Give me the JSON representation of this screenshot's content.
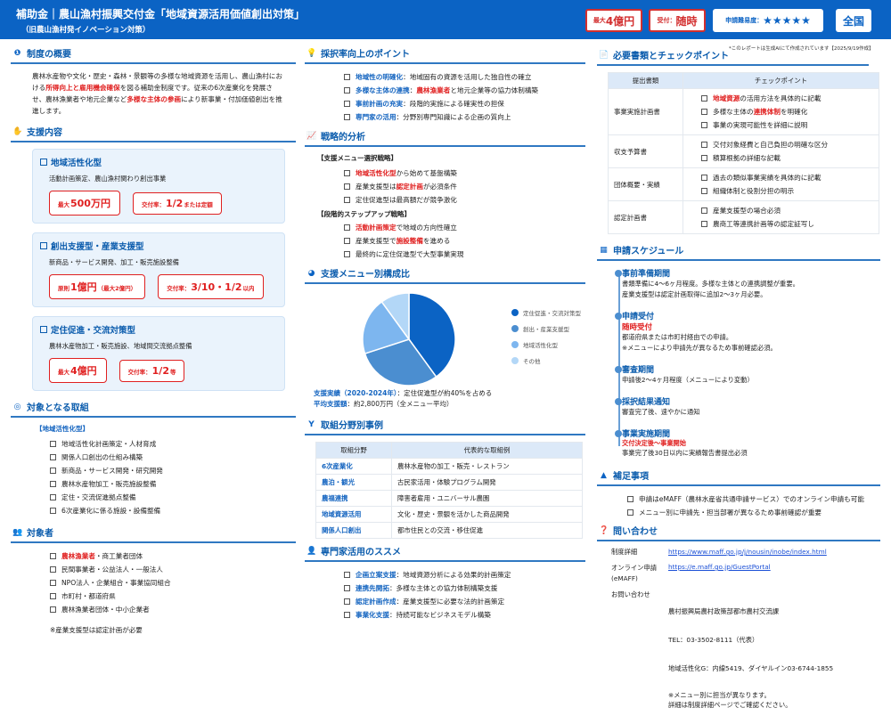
{
  "header": {
    "title": "補助金｜農山漁村振興交付金「地域資源活用価値創出対策」",
    "subtitle": "（旧農山漁村発イノベーション対策）",
    "badge_max_prefix": "最大",
    "badge_max_value": "4億円",
    "badge_accept_prefix": "受付：",
    "badge_accept_value": "随時",
    "difficulty_label": "申請難易度：",
    "difficulty_stars": "★★★★★",
    "region": "全国"
  },
  "note": "*このレポートは生成AIにて作成されています【2025/9/19作成】",
  "overview": {
    "title": "制度の概要",
    "text": [
      {
        "t": "農林水産物や文化・歴史・森林・景観等の多様な地域資源を活用し、農山漁村における"
      },
      {
        "t": "所得向上と雇用機会確保",
        "c": "red"
      },
      {
        "t": "を図る補助金制度です。従来の6次産業化を発展させ、農林漁業者や地元企業など"
      },
      {
        "t": "多様な主体の参画",
        "c": "red"
      },
      {
        "t": "により新事業・付加価値創出を推進します。"
      }
    ]
  },
  "support": {
    "title": "支援内容",
    "cards": [
      {
        "title": "地域活性化型",
        "desc": "活動計画策定、農山漁村関わり創出事業",
        "pills": [
          {
            "pre": "最大",
            "big": "500万円",
            "post": ""
          },
          {
            "pre": "交付率：",
            "big": "1/2",
            "post": "または定額"
          }
        ]
      },
      {
        "title": "創出支援型・産業支援型",
        "desc": "新商品・サービス開発、加工・販売施設整備",
        "pills": [
          {
            "pre": "原則",
            "big": "1億円",
            "post": "（最大2億円）"
          },
          {
            "pre": "交付率：",
            "big": "3/10・1/2",
            "post": "以内"
          }
        ]
      },
      {
        "title": "定住促進・交流対策型",
        "desc": "農林水産物加工・販売施設、地域間交流拠点整備",
        "pills": [
          {
            "pre": "最大",
            "big": "4億円",
            "post": ""
          },
          {
            "pre": "交付率：",
            "big": "1/2",
            "post": "等"
          }
        ]
      }
    ]
  },
  "efforts": {
    "title": "対象となる取組",
    "sub": "【地域活性化型】",
    "items": [
      [
        {
          "t": "地域活性化計画策定・人材育成"
        }
      ],
      [
        {
          "t": "関係人口創出の仕組み構築"
        }
      ],
      [
        {
          "t": "新商品・サービス開発・研究開発"
        }
      ],
      [
        {
          "t": "農林水産物加工・販売施設整備"
        }
      ],
      [
        {
          "t": "定住・交流促進拠点整備"
        }
      ],
      [
        {
          "t": "6次産業化に係る施設・設備整備"
        }
      ]
    ]
  },
  "targets": {
    "title": "対象者",
    "items": [
      [
        {
          "t": "農林漁業者",
          "c": "red"
        },
        {
          "t": "・商工業者団体"
        }
      ],
      [
        {
          "t": "民間事業者・公益法人・一般法人"
        }
      ],
      [
        {
          "t": "NPO法人・企業組合・事業協同組合"
        }
      ],
      [
        {
          "t": "市町村・都道府県"
        }
      ],
      [
        {
          "t": "農林漁業者団体・中小企業者"
        }
      ]
    ],
    "note": "※産業支援型は認定計画が必要"
  },
  "points": {
    "title": "採択率向上のポイント",
    "items": [
      [
        {
          "t": "地域性の明確化",
          "c": "blue"
        },
        {
          "t": "：地域固有の資源を活用した独自性の確立"
        }
      ],
      [
        {
          "t": "多様な主体の連携",
          "c": "blue"
        },
        {
          "t": "："
        },
        {
          "t": "農林漁業者",
          "c": "red"
        },
        {
          "t": "と地元企業等の協力体制構築"
        }
      ],
      [
        {
          "t": "事前計画の充実",
          "c": "blue"
        },
        {
          "t": "：段階的実施による確実性の担保"
        }
      ],
      [
        {
          "t": "専門家の活用",
          "c": "blue"
        },
        {
          "t": "：分野別専門知識による企画の質向上"
        }
      ]
    ]
  },
  "strategy": {
    "title": "戦略的分析",
    "sub1": "【支援メニュー選択戦略】",
    "items1": [
      [
        {
          "t": "地域活性化型",
          "c": "red"
        },
        {
          "t": "から始めて基盤構築"
        }
      ],
      [
        {
          "t": "産業支援型は"
        },
        {
          "t": "認定計画",
          "c": "red"
        },
        {
          "t": "が必須条件"
        }
      ],
      [
        {
          "t": "定住促進型は最高額だが競争激化"
        }
      ]
    ],
    "sub2": "【段階的ステップアップ戦略】",
    "items2": [
      [
        {
          "t": "活動計画策定",
          "c": "red"
        },
        {
          "t": "で地域の方向性確立"
        }
      ],
      [
        {
          "t": "産業支援型で"
        },
        {
          "t": "施設整備",
          "c": "red"
        },
        {
          "t": "を進める"
        }
      ],
      [
        {
          "t": "最終的に定住促進型で大型事業実現"
        }
      ]
    ]
  },
  "composition": {
    "title": "支援メニュー別構成比",
    "stat1_label": "支援実績（2020-2024年）",
    "stat1_value": "：定住促進型が約40%を占める",
    "stat2_label": "平均支援額",
    "stat2_value": "：約2,800万円（全メニュー平均）"
  },
  "chart_data": {
    "type": "pie",
    "categories": [
      "定住促進・交流対策型",
      "創出・産業支援型",
      "地域活性化型",
      "その他"
    ],
    "values": [
      40,
      30,
      20,
      10
    ],
    "colors": [
      "#0b63c4",
      "#4b8ed0",
      "#7db6ef",
      "#b3d7f7"
    ],
    "legend": "right"
  },
  "cases": {
    "title": "取組分野別事例",
    "headers": [
      "取組分野",
      "代表的な取組例"
    ],
    "rows": [
      [
        "6次産業化",
        "農林水産物の加工・販売・レストラン"
      ],
      [
        "農泊・観光",
        "古民家活用・体験プログラム開発"
      ],
      [
        "農福連携",
        "障害者雇用・ユニバーサル農園"
      ],
      [
        "地域資源活用",
        "文化・歴史・景観を活かした商品開発"
      ],
      [
        "関係人口創出",
        "都市住民との交流・移住促進"
      ]
    ]
  },
  "experts": {
    "title": "専門家活用のススメ",
    "items": [
      [
        {
          "t": "企画立案支援",
          "c": "blue"
        },
        {
          "t": "：地域資源分析による効果的計画策定"
        }
      ],
      [
        {
          "t": "連携先開拓",
          "c": "blue"
        },
        {
          "t": "：多様な主体との協力体制構築支援"
        }
      ],
      [
        {
          "t": "認定計画作成",
          "c": "blue"
        },
        {
          "t": "：産業支援型に必要な法的計画策定"
        }
      ],
      [
        {
          "t": "事業化支援",
          "c": "blue"
        },
        {
          "t": "：持続可能なビジネスモデル構築"
        }
      ]
    ]
  },
  "docs": {
    "title": "必要書類とチェックポイント",
    "headers": [
      "提出書類",
      "チェックポイント"
    ],
    "rows": [
      {
        "name": "事業実施計画書",
        "checks": [
          [
            {
              "t": "地域資源",
              "c": "red"
            },
            {
              "t": "の活用方法を具体的に記載"
            }
          ],
          [
            {
              "t": "多様な主体の"
            },
            {
              "t": "連携体制",
              "c": "red"
            },
            {
              "t": "を明確化"
            }
          ],
          [
            {
              "t": "事業の実現可能性を詳細に説明"
            }
          ]
        ]
      },
      {
        "name": "収支予算書",
        "checks": [
          [
            {
              "t": "交付対象経費と自己負担の明確な区分"
            }
          ],
          [
            {
              "t": "積算根拠の詳細な記載"
            }
          ]
        ]
      },
      {
        "name": "団体概要・実績",
        "checks": [
          [
            {
              "t": "過去の類似事業実績を具体的に記載"
            }
          ],
          [
            {
              "t": "組織体制と役割分担の明示"
            }
          ]
        ]
      },
      {
        "name": "認定計画書",
        "checks": [
          [
            {
              "t": "産業支援型の場合必須"
            }
          ],
          [
            {
              "t": "農商工等連携計画等の認定証写し"
            }
          ]
        ]
      }
    ]
  },
  "schedule": {
    "title": "申請スケジュール",
    "steps": [
      {
        "heading": "事前準備期間",
        "highlight": "",
        "lines": [
          "書類準備に4〜6ヶ月程度。多様な主体との連携調整が重要。",
          "産業支援型は認定計画取得に追加2〜3ヶ月必要。"
        ]
      },
      {
        "heading": "申請受付",
        "highlight": "随時受付",
        "lines": [
          "都道府県または市町村経由での申請。",
          "※メニューにより申請先が異なるため事前確認必須。"
        ]
      },
      {
        "heading": "審査期間",
        "highlight": "",
        "lines": [
          "申請後2〜4ヶ月程度（メニューにより変動）"
        ]
      },
      {
        "heading": "採択結果通知",
        "highlight": "",
        "lines": [
          "審査完了後、速やかに通知"
        ]
      },
      {
        "heading": "事業実施期間",
        "highlight_small": "交付決定後〜事業開始",
        "lines": [
          "事業完了後30日以内に実績報告書提出必須"
        ]
      }
    ]
  },
  "supplement": {
    "title": "補足事項",
    "items": [
      [
        {
          "t": "申請はeMAFF（農林水産省共通申請サービス）でのオンライン申請も可能"
        }
      ],
      [
        {
          "t": "メニュー別に申請先・担当部署が異なるため事前確認が重要"
        }
      ]
    ]
  },
  "contact": {
    "title": "問い合わせ",
    "detail_label": "制度詳細",
    "detail_url": "https://www.maff.go.jp/j/nousin/inobe/index.html",
    "online_label": "オンライン申請\n(eMAFF)",
    "online_url": "https://e.maff.go.jp/GuestPortal",
    "inquiry_label": "お問い合わせ",
    "inquiry_lines": [
      "農村振興局農村政策部都市農村交流課",
      "TEL：03-3502-8111（代表）",
      "地域活性化G：内線5419、ダイヤルイン03-6744-1855",
      "※メニュー別に担当が異なります。\n詳細は制度詳細ページでご確認ください。"
    ]
  }
}
